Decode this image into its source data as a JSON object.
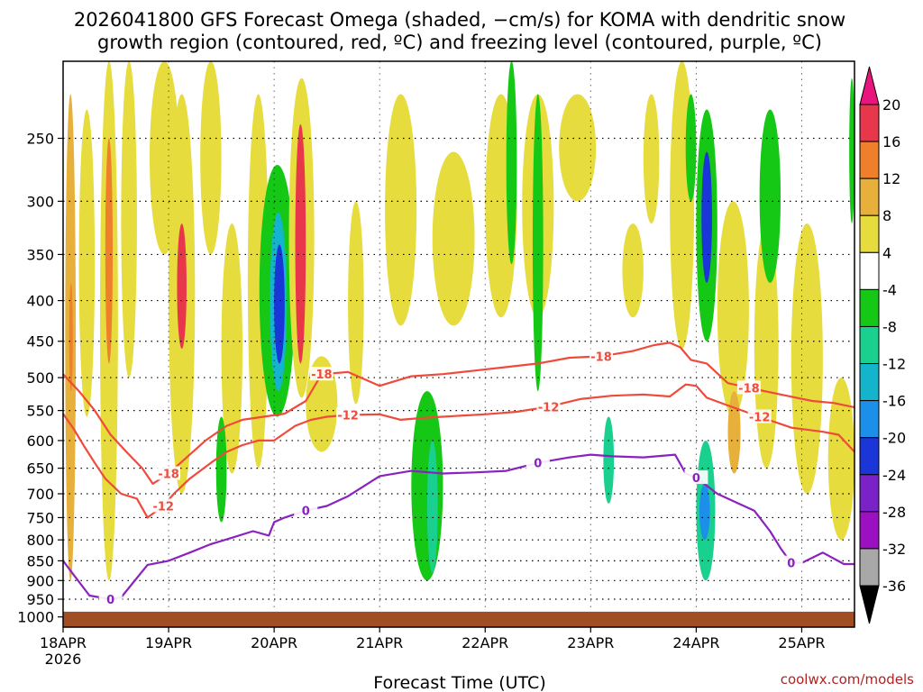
{
  "chart_data": {
    "type": "heatmap",
    "title_line1": "2026041800 GFS Forecast Omega (shaded, −cm/s) for KOMA with dendritic snow",
    "title_line2": "growth region (contoured, red, ºC) and freezing level (contoured, purple, ºC)",
    "xlabel": "Forecast Time (UTC)",
    "credit": "coolwx.com/models",
    "x_start_label": "18APR",
    "x_start_year": "2026",
    "x_ticks": [
      "18APR",
      "19APR",
      "20APR",
      "21APR",
      "22APR",
      "23APR",
      "24APR",
      "25APR"
    ],
    "x_range_days": [
      0,
      7.5
    ],
    "y_ticks": [
      250,
      300,
      350,
      400,
      450,
      500,
      550,
      600,
      650,
      700,
      750,
      800,
      850,
      900,
      950,
      1000
    ],
    "y_range_hpa": [
      200,
      1030
    ],
    "ground_level_hpa": 985,
    "colorbar_levels": [
      20,
      16,
      12,
      8,
      4,
      -4,
      -8,
      -12,
      -16,
      -20,
      -24,
      -28,
      -32,
      -36
    ],
    "colors": {
      "c_pos_16_20": "#e8374a",
      "c_pos_12_16": "#ef7f2b",
      "c_pos_8_12": "#e6b03a",
      "c_pos_4_8": "#e7dc3d",
      "c_neutral": "#ffffff",
      "c_neg_4_8": "#16c816",
      "c_neg_8_12": "#19d08f",
      "c_neg_12_16": "#14b4cc",
      "c_neg_16_20": "#1c8fe8",
      "c_neg_20_24": "#1a35d8",
      "c_neg_24_28": "#7a22c8",
      "c_neg_28_32": "#9b10c0",
      "c_neg_32_36": "#a8a8a8",
      "c_top_arrow": "#e8157f",
      "c_bottom_arrow": "#000000",
      "dgz_contour": "#ef4a3b",
      "freezing_contour": "#8a22c0",
      "ground": "#a24e24"
    },
    "dgz_minus12_label": "-12",
    "dgz_minus18_label": "-18",
    "freezing_label": "0",
    "dgz_minus12_line": {
      "days": [
        0,
        0.1,
        0.2,
        0.3,
        0.4,
        0.55,
        0.7,
        0.8,
        0.95,
        1.05,
        1.2,
        1.4,
        1.55,
        1.7,
        1.85,
        2.0,
        2.2,
        2.35,
        2.5,
        2.7,
        3.0,
        3.2,
        3.4,
        3.6,
        3.8,
        4.0,
        4.3,
        4.6,
        4.9,
        5.2,
        5.5,
        5.75,
        5.9,
        6.0,
        6.1,
        6.3,
        6.6,
        6.9,
        7.2,
        7.35,
        7.5
      ],
      "hpa": [
        555,
        580,
        610,
        640,
        670,
        700,
        710,
        750,
        725,
        700,
        670,
        640,
        620,
        608,
        600,
        600,
        575,
        565,
        560,
        557,
        556,
        565,
        562,
        560,
        558,
        556,
        552,
        544,
        532,
        527,
        525,
        528,
        510,
        512,
        530,
        542,
        560,
        578,
        585,
        590,
        620
      ]
    },
    "dgz_minus18_line": {
      "days": [
        0,
        0.15,
        0.3,
        0.45,
        0.6,
        0.75,
        0.85,
        1.0,
        1.2,
        1.35,
        1.55,
        1.7,
        1.9,
        2.1,
        2.3,
        2.45,
        2.7,
        3.0,
        3.3,
        3.6,
        3.9,
        4.2,
        4.5,
        4.8,
        5.1,
        5.4,
        5.6,
        5.75,
        5.85,
        5.95,
        6.1,
        6.3,
        6.5,
        6.8,
        7.1,
        7.3,
        7.5
      ],
      "hpa": [
        495,
        520,
        550,
        590,
        620,
        650,
        680,
        660,
        625,
        600,
        575,
        565,
        560,
        555,
        535,
        495,
        492,
        512,
        498,
        495,
        490,
        485,
        480,
        472,
        470,
        463,
        455,
        452,
        458,
        475,
        480,
        508,
        515,
        525,
        535,
        538,
        545
      ]
    },
    "freezing_line": {
      "days": [
        0,
        0.1,
        0.25,
        0.45,
        0.55,
        0.8,
        1.0,
        1.2,
        1.4,
        1.6,
        1.8,
        1.95,
        2.0,
        2.1,
        2.3,
        2.5,
        2.7,
        3.0,
        3.3,
        3.6,
        3.9,
        4.2,
        4.5,
        4.8,
        5.0,
        5.2,
        5.5,
        5.8,
        5.9,
        6.0,
        6.2,
        6.4,
        6.55,
        6.7,
        6.8,
        6.9,
        7.0,
        7.2,
        7.4,
        7.5
      ],
      "hpa": [
        850,
        885,
        940,
        950,
        945,
        860,
        850,
        830,
        810,
        795,
        780,
        790,
        760,
        750,
        735,
        725,
        705,
        665,
        655,
        660,
        658,
        655,
        640,
        630,
        625,
        628,
        630,
        625,
        660,
        668,
        700,
        720,
        735,
        780,
        820,
        855,
        855,
        830,
        858,
        858
      ]
    },
    "omega_regions": [
      {
        "d": [
          0.02,
          0.12
        ],
        "p": [
          220,
          900
        ],
        "v": 8
      },
      {
        "d": [
          0.06,
          0.09
        ],
        "p": [
          380,
          520
        ],
        "v": 14
      },
      {
        "d": [
          0.15,
          0.3
        ],
        "p": [
          230,
          560
        ],
        "v": 6
      },
      {
        "d": [
          0.35,
          0.52
        ],
        "p": [
          200,
          900
        ],
        "v": 7
      },
      {
        "d": [
          0.4,
          0.47
        ],
        "p": [
          250,
          480
        ],
        "v": 13
      },
      {
        "d": [
          0.55,
          0.7
        ],
        "p": [
          200,
          500
        ],
        "v": 5
      },
      {
        "d": [
          0.82,
          1.1
        ],
        "p": [
          200,
          350
        ],
        "v": 6
      },
      {
        "d": [
          1.0,
          1.25
        ],
        "p": [
          220,
          700
        ],
        "v": 7
      },
      {
        "d": [
          1.08,
          1.17
        ],
        "p": [
          320,
          460
        ],
        "v": 17
      },
      {
        "d": [
          1.3,
          1.5
        ],
        "p": [
          200,
          350
        ],
        "v": 5
      },
      {
        "d": [
          1.5,
          1.7
        ],
        "p": [
          320,
          660
        ],
        "v": 4
      },
      {
        "d": [
          1.75,
          1.95
        ],
        "p": [
          220,
          650
        ],
        "v": 5
      },
      {
        "d": [
          1.86,
          2.2
        ],
        "p": [
          270,
          560
        ],
        "v": -6
      },
      {
        "d": [
          1.96,
          2.12
        ],
        "p": [
          310,
          520
        ],
        "v": -14
      },
      {
        "d": [
          2.0,
          2.1
        ],
        "p": [
          340,
          480
        ],
        "v": -22
      },
      {
        "d": [
          2.14,
          2.38
        ],
        "p": [
          210,
          530
        ],
        "v": 6
      },
      {
        "d": [
          2.2,
          2.3
        ],
        "p": [
          240,
          480
        ],
        "v": 19
      },
      {
        "d": [
          1.45,
          1.55
        ],
        "p": [
          560,
          760
        ],
        "v": -6
      },
      {
        "d": [
          2.3,
          2.6
        ],
        "p": [
          470,
          620
        ],
        "v": 5
      },
      {
        "d": [
          2.7,
          2.85
        ],
        "p": [
          300,
          540
        ],
        "v": 4
      },
      {
        "d": [
          3.05,
          3.35
        ],
        "p": [
          220,
          430
        ],
        "v": 5
      },
      {
        "d": [
          3.3,
          3.6
        ],
        "p": [
          520,
          900
        ],
        "v": -6
      },
      {
        "d": [
          3.45,
          3.55
        ],
        "p": [
          600,
          880
        ],
        "v": -11
      },
      {
        "d": [
          3.5,
          3.9
        ],
        "p": [
          260,
          430
        ],
        "v": 5
      },
      {
        "d": [
          4.0,
          4.3
        ],
        "p": [
          220,
          420
        ],
        "v": 5
      },
      {
        "d": [
          4.2,
          4.3
        ],
        "p": [
          200,
          360
        ],
        "v": -7
      },
      {
        "d": [
          4.35,
          4.65
        ],
        "p": [
          220,
          420
        ],
        "v": 5
      },
      {
        "d": [
          4.45,
          4.55
        ],
        "p": [
          220,
          520
        ],
        "v": -5
      },
      {
        "d": [
          4.7,
          5.05
        ],
        "p": [
          220,
          300
        ],
        "v": 4
      },
      {
        "d": [
          5.12,
          5.22
        ],
        "p": [
          560,
          720
        ],
        "v": -10
      },
      {
        "d": [
          5.3,
          5.5
        ],
        "p": [
          320,
          420
        ],
        "v": 5
      },
      {
        "d": [
          5.5,
          5.65
        ],
        "p": [
          220,
          320
        ],
        "v": 4
      },
      {
        "d": [
          5.75,
          5.98
        ],
        "p": [
          200,
          460
        ],
        "v": 5
      },
      {
        "d": [
          5.9,
          6.0
        ],
        "p": [
          220,
          300
        ],
        "v": -6
      },
      {
        "d": [
          6.0,
          6.2
        ],
        "p": [
          230,
          450
        ],
        "v": -7
      },
      {
        "d": [
          6.05,
          6.15
        ],
        "p": [
          260,
          380
        ],
        "v": -20
      },
      {
        "d": [
          6.0,
          6.18
        ],
        "p": [
          600,
          900
        ],
        "v": -10
      },
      {
        "d": [
          6.03,
          6.13
        ],
        "p": [
          680,
          800
        ],
        "v": -16
      },
      {
        "d": [
          6.2,
          6.5
        ],
        "p": [
          300,
          560
        ],
        "v": 5
      },
      {
        "d": [
          6.3,
          6.42
        ],
        "p": [
          520,
          660
        ],
        "v": 10
      },
      {
        "d": [
          6.55,
          6.78
        ],
        "p": [
          320,
          650
        ],
        "v": 6
      },
      {
        "d": [
          6.6,
          6.8
        ],
        "p": [
          230,
          380
        ],
        "v": -6
      },
      {
        "d": [
          6.9,
          7.2
        ],
        "p": [
          320,
          700
        ],
        "v": 6
      },
      {
        "d": [
          7.25,
          7.5
        ],
        "p": [
          500,
          800
        ],
        "v": 7
      },
      {
        "d": [
          7.45,
          7.5
        ],
        "p": [
          210,
          320
        ],
        "v": -6
      }
    ]
  }
}
